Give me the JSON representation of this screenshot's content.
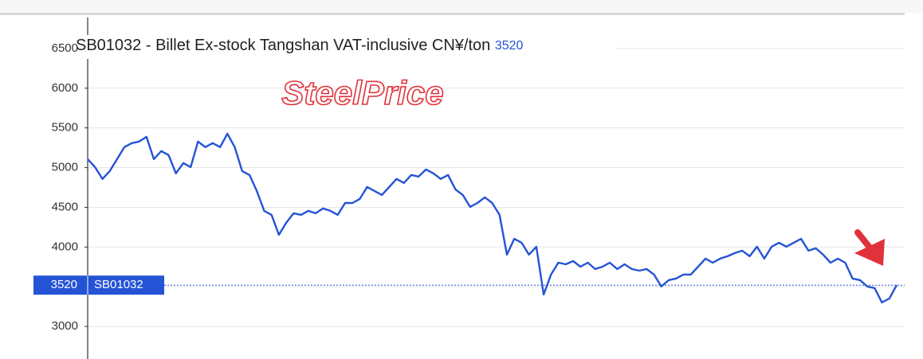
{
  "chart_data": {
    "type": "line",
    "title": "SB01032 - Billet Ex-stock Tangshan VAT-inclusive CN¥/ton",
    "watermark": "SteelPrice",
    "last_value": 3520,
    "ylim": [
      2590,
      6890
    ],
    "yticks": [
      3000,
      3500,
      4000,
      4500,
      5000,
      5500,
      6000,
      6500
    ],
    "grid": true,
    "series": [
      {
        "name": "SB01032",
        "color": "#2453d6",
        "values": [
          5107,
          5007,
          4857,
          4957,
          5107,
          5258,
          5308,
          5328,
          5388,
          5107,
          5208,
          5158,
          4927,
          5057,
          5007,
          5328,
          5258,
          5308,
          5258,
          5428,
          5258,
          4957,
          4907,
          4706,
          4455,
          4405,
          4154,
          4305,
          4425,
          4405,
          4455,
          4425,
          4485,
          4455,
          4405,
          4555,
          4555,
          4606,
          4756,
          4706,
          4656,
          4756,
          4857,
          4807,
          4907,
          4887,
          4977,
          4927,
          4857,
          4907,
          4726,
          4656,
          4505,
          4555,
          4626,
          4555,
          4405,
          3904,
          4104,
          4054,
          3904,
          4004,
          3402,
          3653,
          3803,
          3783,
          3823,
          3753,
          3803,
          3723,
          3753,
          3803,
          3723,
          3783,
          3723,
          3703,
          3723,
          3653,
          3503,
          3583,
          3603,
          3653,
          3653,
          3753,
          3854,
          3803,
          3854,
          3884,
          3924,
          3954,
          3884,
          4004,
          3854,
          4004,
          4054,
          4004,
          4054,
          4104,
          3954,
          3984,
          3904,
          3803,
          3854,
          3803,
          3603,
          3583,
          3503,
          3483,
          3302,
          3352,
          3520
        ]
      }
    ]
  }
}
